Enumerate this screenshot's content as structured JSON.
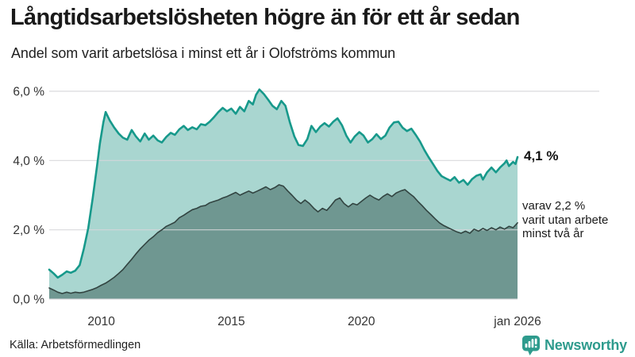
{
  "header": {
    "title": "Långtidsarbetslösheten högre än för ett år sedan",
    "subtitle": "Andel som varit arbetslösa i minst ett år i Olofströms kommun"
  },
  "annotations": {
    "end_value_label": "4,1 %",
    "sub_line1": "varav 2,2 %",
    "sub_line2": "varit utan arbete",
    "sub_line3": "minst två år"
  },
  "footer": {
    "source": "Källa: Arbetsförmedlingen",
    "brand": "Newsworthy"
  },
  "colors": {
    "title_text": "#1a1a1a",
    "body_text": "#222222",
    "axis_text": "#333333",
    "gridline": "#d6d7da",
    "series1_line": "#17998b",
    "series1_fill": "#a9d6d0",
    "series2_line": "#324441",
    "series2_fill": "#6f9791",
    "brand_teal": "#2e9b8d"
  },
  "chart_data": {
    "type": "area",
    "title": "Långtidsarbetslösheten högre än för ett år sedan",
    "subtitle": "Andel som varit arbetslösa i minst ett år i Olofströms kommun",
    "x_unit": "decimal_year",
    "x_range": [
      2008.0,
      2026.0
    ],
    "ylim": [
      0,
      6.4
    ],
    "grid": true,
    "legend_position": "none",
    "y_axis": {
      "ticks": [
        {
          "value": 6,
          "label": "6,0 %"
        },
        {
          "value": 4,
          "label": "4,0 %"
        },
        {
          "value": 2,
          "label": "2,0 %"
        },
        {
          "value": 0,
          "label": "0,0 %"
        }
      ]
    },
    "x_axis": {
      "ticks": [
        {
          "value": 2010,
          "label": "2010"
        },
        {
          "value": 2015,
          "label": "2015"
        },
        {
          "value": 2020,
          "label": "2020"
        },
        {
          "value": 2026.0,
          "label": "jan 2026"
        }
      ]
    },
    "series": [
      {
        "name": "Arbetslösa minst ett år",
        "end_value": 4.1,
        "end_label": "4,1 %",
        "line_color": "#17998b",
        "fill_color": "#a9d6d0",
        "line_width": 2.6,
        "x": [
          2008.0,
          2008.17,
          2008.33,
          2008.5,
          2008.67,
          2008.83,
          2009.0,
          2009.17,
          2009.33,
          2009.5,
          2009.67,
          2009.83,
          2009.95,
          2010.08,
          2010.17,
          2010.33,
          2010.5,
          2010.67,
          2010.83,
          2011.0,
          2011.17,
          2011.33,
          2011.5,
          2011.67,
          2011.83,
          2012.0,
          2012.17,
          2012.33,
          2012.5,
          2012.67,
          2012.83,
          2013.0,
          2013.17,
          2013.33,
          2013.5,
          2013.67,
          2013.83,
          2014.0,
          2014.17,
          2014.33,
          2014.5,
          2014.67,
          2014.83,
          2015.0,
          2015.17,
          2015.33,
          2015.5,
          2015.67,
          2015.83,
          2015.95,
          2016.08,
          2016.25,
          2016.42,
          2016.58,
          2016.75,
          2016.92,
          2017.08,
          2017.25,
          2017.42,
          2017.58,
          2017.75,
          2017.92,
          2018.08,
          2018.25,
          2018.42,
          2018.58,
          2018.75,
          2018.92,
          2019.08,
          2019.25,
          2019.42,
          2019.58,
          2019.75,
          2019.92,
          2020.08,
          2020.25,
          2020.42,
          2020.58,
          2020.75,
          2020.92,
          2021.08,
          2021.25,
          2021.42,
          2021.58,
          2021.75,
          2021.92,
          2022.08,
          2022.25,
          2022.42,
          2022.58,
          2022.75,
          2022.92,
          2023.08,
          2023.25,
          2023.42,
          2023.58,
          2023.75,
          2023.92,
          2024.08,
          2024.25,
          2024.42,
          2024.58,
          2024.67,
          2024.83,
          2025.0,
          2025.17,
          2025.33,
          2025.5,
          2025.58,
          2025.67,
          2025.83,
          2025.92,
          2026.0
        ],
        "values": [
          0.85,
          0.74,
          0.62,
          0.7,
          0.8,
          0.76,
          0.82,
          0.98,
          1.45,
          2.05,
          2.9,
          3.8,
          4.5,
          5.1,
          5.4,
          5.15,
          4.95,
          4.78,
          4.66,
          4.6,
          4.88,
          4.7,
          4.55,
          4.78,
          4.6,
          4.72,
          4.58,
          4.52,
          4.68,
          4.8,
          4.74,
          4.9,
          5.0,
          4.88,
          4.96,
          4.9,
          5.05,
          5.02,
          5.12,
          5.25,
          5.4,
          5.52,
          5.42,
          5.5,
          5.35,
          5.55,
          5.42,
          5.72,
          5.62,
          5.9,
          6.05,
          5.92,
          5.75,
          5.58,
          5.48,
          5.72,
          5.58,
          5.1,
          4.7,
          4.45,
          4.42,
          4.62,
          5.0,
          4.82,
          4.98,
          5.08,
          4.98,
          5.12,
          5.22,
          5.02,
          4.72,
          4.52,
          4.7,
          4.82,
          4.72,
          4.52,
          4.62,
          4.76,
          4.62,
          4.72,
          4.95,
          5.1,
          5.12,
          4.95,
          4.85,
          4.92,
          4.75,
          4.55,
          4.3,
          4.1,
          3.9,
          3.7,
          3.55,
          3.48,
          3.42,
          3.52,
          3.36,
          3.44,
          3.3,
          3.46,
          3.56,
          3.6,
          3.45,
          3.66,
          3.8,
          3.66,
          3.8,
          3.92,
          4.0,
          3.84,
          3.96,
          3.9,
          4.1
        ]
      },
      {
        "name": "Arbetslösa minst två år",
        "end_value": 2.2,
        "end_label": "varav 2,2 % varit utan arbete minst två år",
        "line_color": "#324441",
        "fill_color": "#6f9791",
        "line_width": 1.6,
        "x": [
          2008.0,
          2008.17,
          2008.33,
          2008.5,
          2008.67,
          2008.83,
          2009.0,
          2009.17,
          2009.33,
          2009.5,
          2009.67,
          2009.83,
          2010.0,
          2010.17,
          2010.33,
          2010.5,
          2010.67,
          2010.83,
          2011.0,
          2011.17,
          2011.33,
          2011.5,
          2011.67,
          2011.83,
          2012.0,
          2012.17,
          2012.33,
          2012.5,
          2012.67,
          2012.83,
          2013.0,
          2013.17,
          2013.33,
          2013.5,
          2013.67,
          2013.83,
          2014.0,
          2014.17,
          2014.33,
          2014.5,
          2014.67,
          2014.83,
          2015.0,
          2015.17,
          2015.33,
          2015.5,
          2015.67,
          2015.83,
          2016.0,
          2016.17,
          2016.33,
          2016.5,
          2016.67,
          2016.83,
          2017.0,
          2017.17,
          2017.33,
          2017.5,
          2017.67,
          2017.83,
          2018.0,
          2018.17,
          2018.33,
          2018.5,
          2018.67,
          2018.83,
          2019.0,
          2019.17,
          2019.33,
          2019.5,
          2019.67,
          2019.83,
          2020.0,
          2020.17,
          2020.33,
          2020.5,
          2020.67,
          2020.83,
          2021.0,
          2021.17,
          2021.33,
          2021.5,
          2021.67,
          2021.83,
          2022.0,
          2022.17,
          2022.33,
          2022.5,
          2022.67,
          2022.83,
          2023.0,
          2023.17,
          2023.33,
          2023.5,
          2023.67,
          2023.83,
          2024.0,
          2024.17,
          2024.33,
          2024.5,
          2024.67,
          2024.83,
          2025.0,
          2025.17,
          2025.33,
          2025.5,
          2025.67,
          2025.83,
          2026.0
        ],
        "values": [
          0.32,
          0.26,
          0.2,
          0.16,
          0.2,
          0.17,
          0.2,
          0.18,
          0.2,
          0.24,
          0.28,
          0.33,
          0.4,
          0.46,
          0.54,
          0.63,
          0.74,
          0.85,
          1.0,
          1.15,
          1.3,
          1.45,
          1.58,
          1.7,
          1.8,
          1.92,
          2.0,
          2.1,
          2.16,
          2.22,
          2.35,
          2.42,
          2.5,
          2.58,
          2.62,
          2.68,
          2.7,
          2.78,
          2.82,
          2.86,
          2.92,
          2.96,
          3.02,
          3.08,
          3.0,
          3.06,
          3.12,
          3.06,
          3.12,
          3.18,
          3.24,
          3.16,
          3.22,
          3.3,
          3.26,
          3.12,
          3.0,
          2.86,
          2.76,
          2.86,
          2.76,
          2.62,
          2.52,
          2.62,
          2.56,
          2.7,
          2.86,
          2.92,
          2.76,
          2.66,
          2.76,
          2.72,
          2.82,
          2.92,
          3.0,
          2.92,
          2.86,
          2.96,
          3.04,
          2.96,
          3.06,
          3.12,
          3.16,
          3.06,
          2.96,
          2.82,
          2.7,
          2.56,
          2.44,
          2.32,
          2.2,
          2.12,
          2.06,
          2.0,
          1.94,
          1.9,
          1.96,
          1.9,
          2.02,
          1.96,
          2.04,
          1.98,
          2.06,
          2.0,
          2.08,
          2.02,
          2.1,
          2.06,
          2.2
        ]
      }
    ]
  }
}
